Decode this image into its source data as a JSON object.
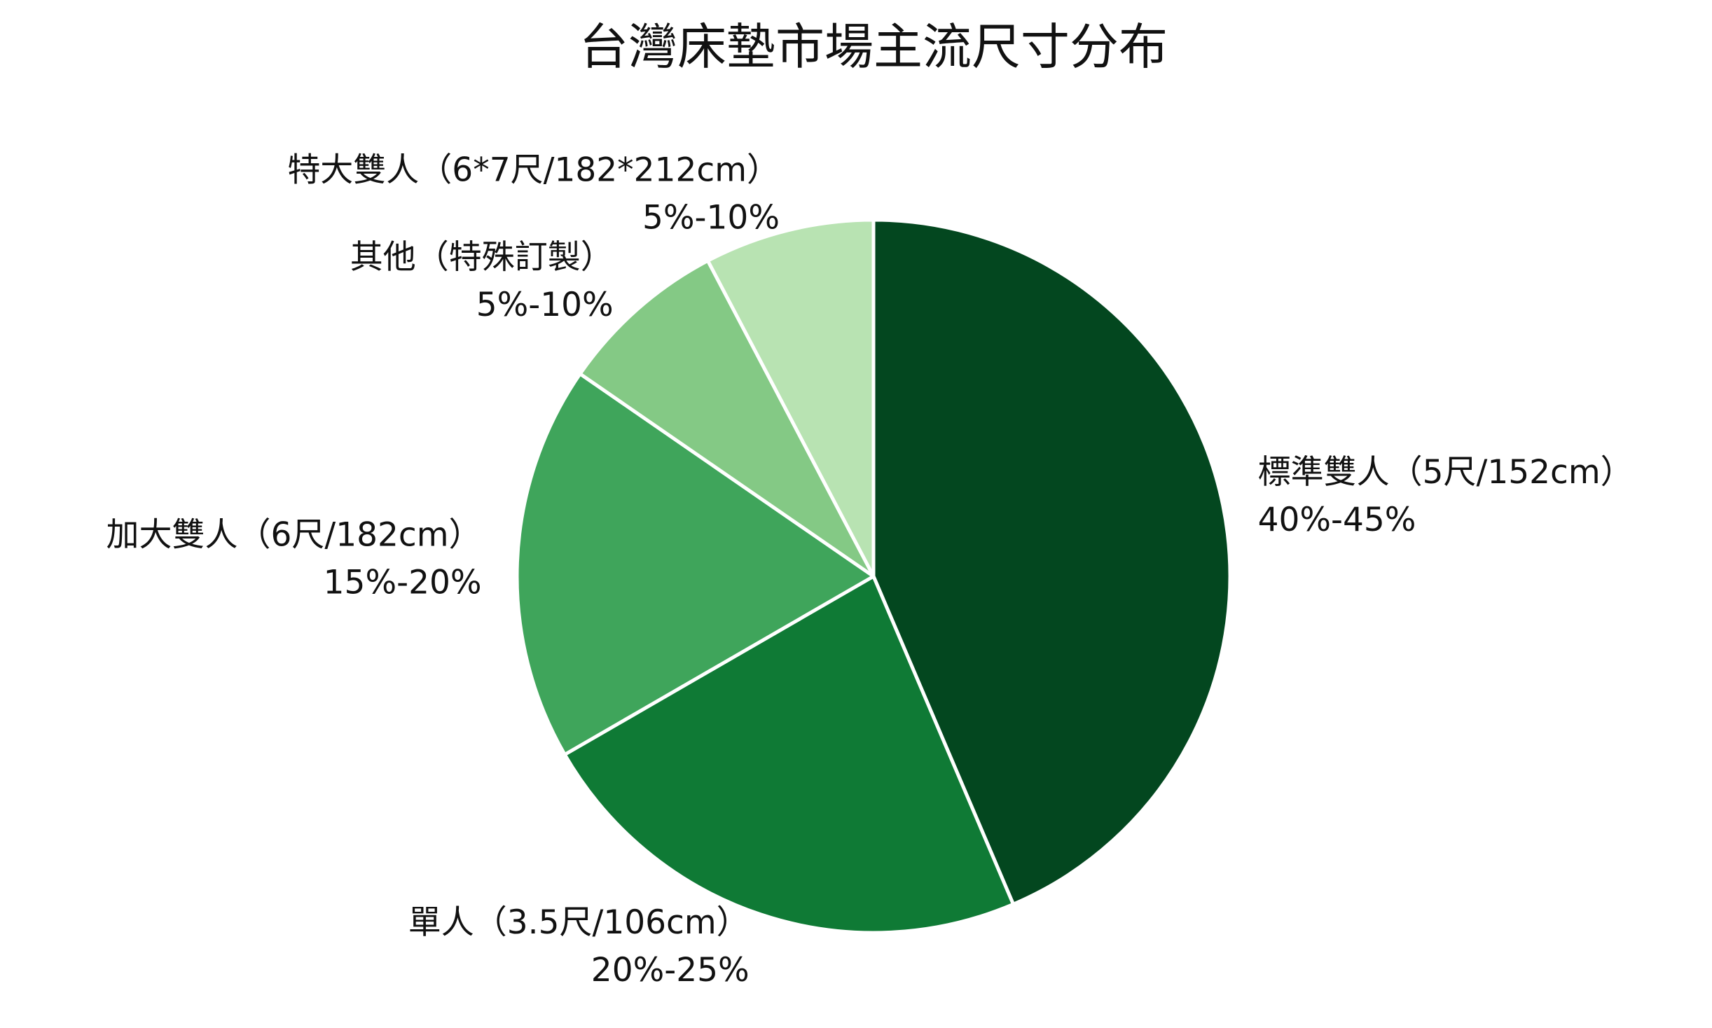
{
  "chart_data": {
    "type": "pie",
    "title": "台灣床墊市場主流尺寸分布",
    "categories": [
      "標準雙人（5尺/152cm）",
      "單人（3.5尺/106cm）",
      "加大雙人（6尺/182cm）",
      "其他（特殊訂製）",
      "特大雙人（6*7尺/182*212cm）"
    ],
    "values": [
      42.5,
      22.5,
      17.5,
      7.5,
      7.5
    ],
    "value_labels": [
      "40%-45%",
      "20%-25%",
      "15%-20%",
      "5%-10%",
      "5%-10%"
    ],
    "colors": [
      "#03471f",
      "#0f7a35",
      "#3fa55b",
      "#84c985",
      "#b8e3b2"
    ]
  }
}
